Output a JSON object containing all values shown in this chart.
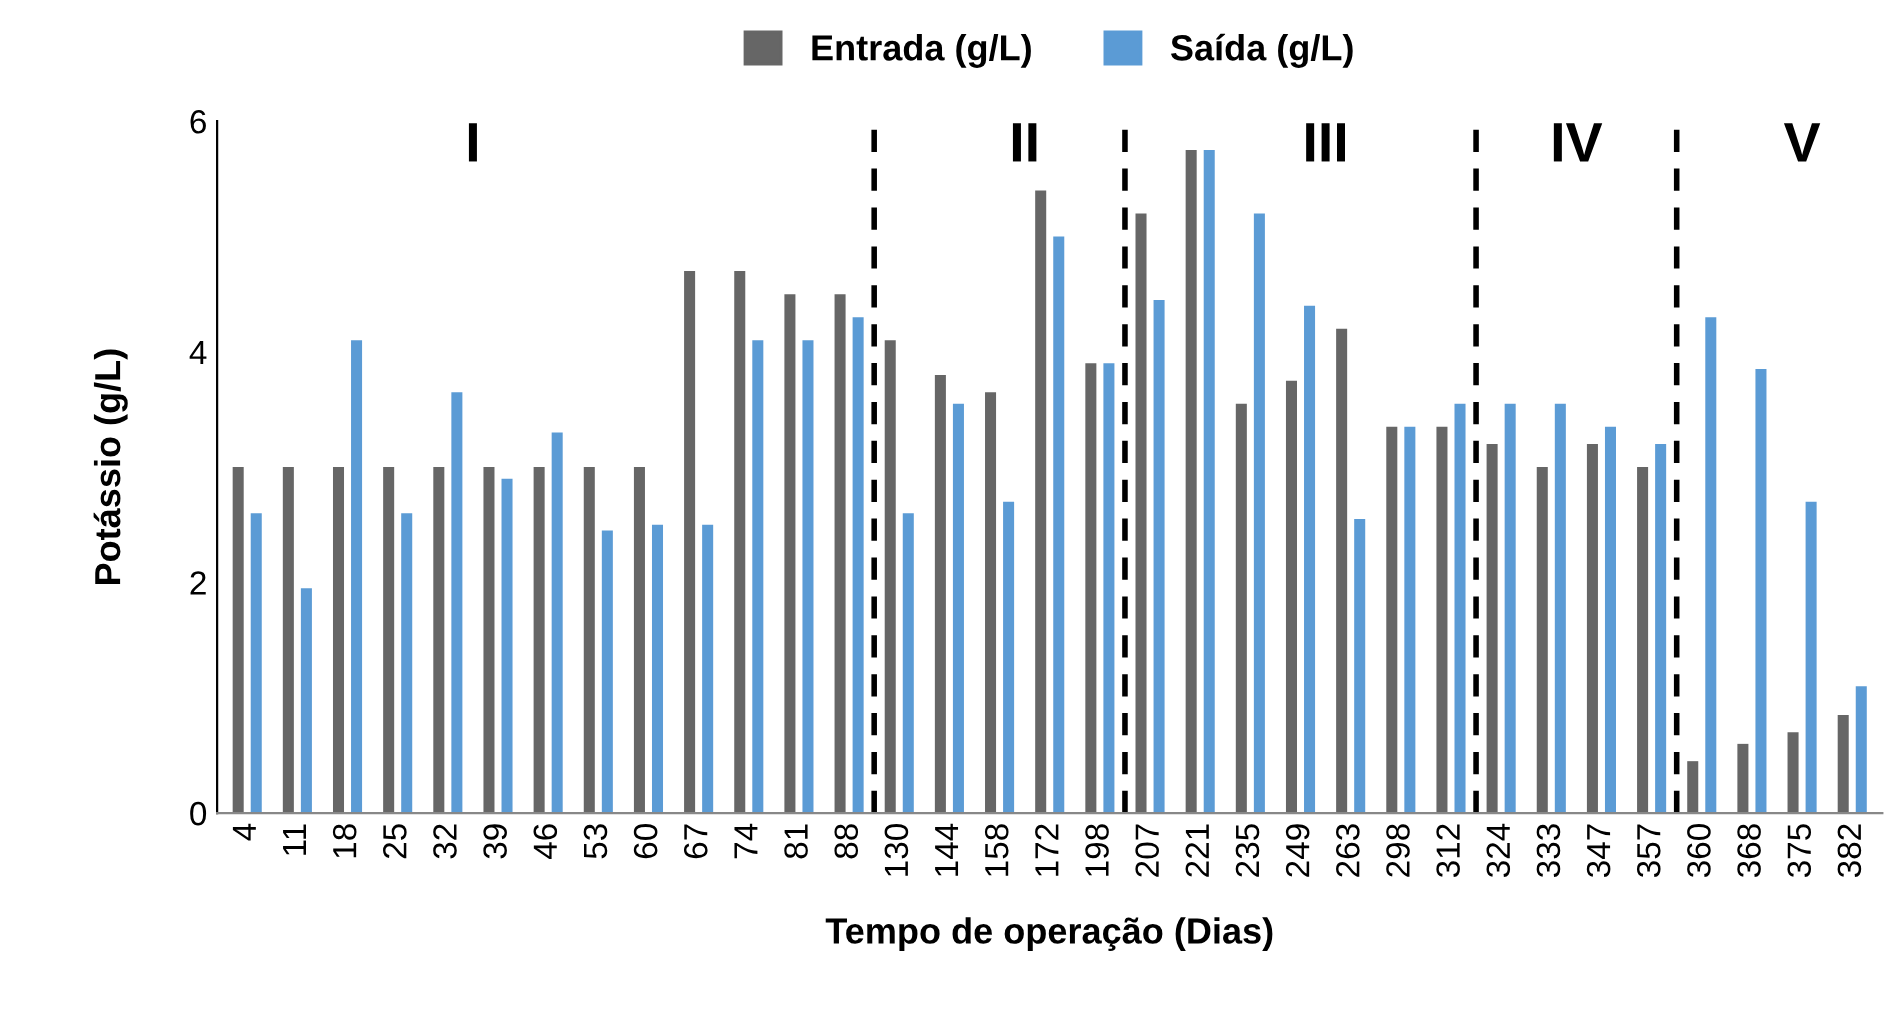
{
  "chart_data": {
    "type": "bar",
    "xlabel": "Tempo de operação (Dias)",
    "ylabel": "Potássio (g/L)",
    "categories": [
      "4",
      "11",
      "18",
      "25",
      "32",
      "39",
      "46",
      "53",
      "60",
      "67",
      "74",
      "81",
      "88",
      "130",
      "144",
      "158",
      "172",
      "198",
      "207",
      "221",
      "235",
      "249",
      "263",
      "298",
      "312",
      "324",
      "333",
      "347",
      "357",
      "360",
      "368",
      "375",
      "382"
    ],
    "series": [
      {
        "name": "Entrada (g/L)",
        "color": "#666666",
        "values": [
          3.0,
          3.0,
          3.0,
          3.0,
          3.0,
          3.0,
          3.0,
          3.0,
          3.0,
          4.7,
          4.7,
          4.5,
          4.5,
          4.1,
          3.8,
          3.65,
          5.4,
          3.9,
          5.2,
          5.75,
          3.55,
          3.75,
          4.2,
          3.35,
          3.35,
          3.2,
          3.0,
          3.2,
          3.0,
          0.45,
          0.6,
          0.7,
          0.85
        ]
      },
      {
        "name": "Saída (g/L)",
        "color": "#5b9bd5",
        "values": [
          2.6,
          1.95,
          4.1,
          2.6,
          3.65,
          2.9,
          3.3,
          2.45,
          2.5,
          2.5,
          4.1,
          4.1,
          4.3,
          2.6,
          3.55,
          2.7,
          5.0,
          3.9,
          4.45,
          5.75,
          5.2,
          4.4,
          2.55,
          3.35,
          3.55,
          3.55,
          3.55,
          3.35,
          3.2,
          4.3,
          3.85,
          2.7,
          1.1
        ]
      }
    ],
    "ylim": [
      0,
      6
    ],
    "yticks": [
      0,
      2,
      4,
      6
    ],
    "grid": false,
    "legend": "top",
    "annotations": [
      "I",
      "II",
      "III",
      "IV",
      "V"
    ]
  }
}
